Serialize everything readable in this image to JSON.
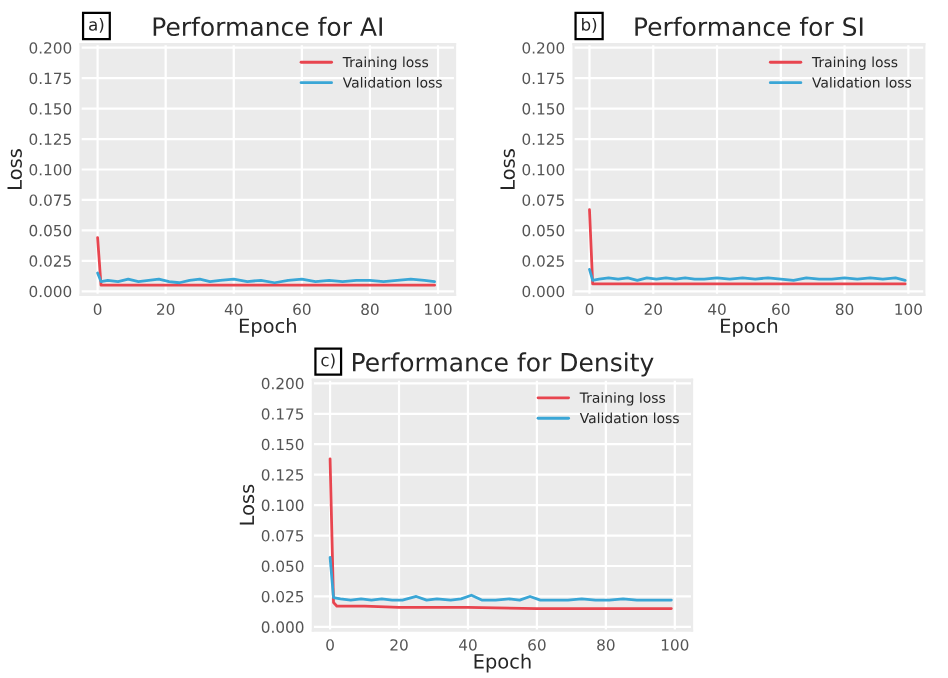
{
  "chart_data": [
    {
      "type": "line",
      "title": "Performance for AI",
      "xlabel": "Epoch",
      "ylabel": "Loss",
      "annotations": [
        "a)"
      ],
      "xlim": [
        -5,
        105
      ],
      "xticks": [
        0,
        20,
        40,
        60,
        80,
        100
      ],
      "ylim": [
        -0.003,
        0.203
      ],
      "yticks": [
        {
          "value": 0,
          "label": "0.000"
        },
        {
          "value": 0.025,
          "label": "0.025"
        },
        {
          "value": 0.05,
          "label": "0.050"
        },
        {
          "value": 0.075,
          "label": "0.075"
        },
        {
          "value": 0.1,
          "label": "0.100"
        },
        {
          "value": 0.125,
          "label": "0.125"
        },
        {
          "value": 0.15,
          "label": "0.150"
        },
        {
          "value": 0.175,
          "label": "0.175"
        },
        {
          "value": 0.2,
          "label": "0.200"
        }
      ],
      "grid": true,
      "legend": "top right",
      "line_style": "solid",
      "marker": "none",
      "series": [
        {
          "name": "Training loss",
          "color": "#e8454f",
          "x": [
            0,
            1,
            2,
            10,
            20,
            40,
            60,
            80,
            99
          ],
          "values": [
            0.044,
            0.005,
            0.005,
            0.005,
            0.005,
            0.005,
            0.005,
            0.005,
            0.005
          ]
        },
        {
          "name": "Validation loss",
          "color": "#3aa6d6",
          "x": [
            0,
            1,
            3,
            6,
            9,
            12,
            15,
            18,
            21,
            24,
            27,
            30,
            33,
            36,
            40,
            44,
            48,
            52,
            56,
            60,
            64,
            68,
            72,
            76,
            80,
            84,
            88,
            92,
            96,
            99
          ],
          "values": [
            0.015,
            0.008,
            0.009,
            0.008,
            0.01,
            0.008,
            0.009,
            0.01,
            0.008,
            0.007,
            0.009,
            0.01,
            0.008,
            0.009,
            0.01,
            0.008,
            0.009,
            0.007,
            0.009,
            0.01,
            0.008,
            0.009,
            0.008,
            0.009,
            0.009,
            0.008,
            0.009,
            0.01,
            0.009,
            0.008
          ]
        }
      ]
    },
    {
      "type": "line",
      "title": "Performance for SI",
      "xlabel": "Epoch",
      "ylabel": "Loss",
      "annotations": [
        "b)"
      ],
      "xlim": [
        -5,
        105
      ],
      "xticks": [
        0,
        20,
        40,
        60,
        80,
        100
      ],
      "ylim": [
        -0.003,
        0.203
      ],
      "yticks": [
        {
          "value": 0,
          "label": "0.000"
        },
        {
          "value": 0.025,
          "label": "0.025"
        },
        {
          "value": 0.05,
          "label": "0.050"
        },
        {
          "value": 0.075,
          "label": "0.075"
        },
        {
          "value": 0.1,
          "label": "0.100"
        },
        {
          "value": 0.125,
          "label": "0.125"
        },
        {
          "value": 0.15,
          "label": "0.150"
        },
        {
          "value": 0.175,
          "label": "0.175"
        },
        {
          "value": 0.2,
          "label": "0.200"
        }
      ],
      "grid": true,
      "legend": "top right",
      "line_style": "solid",
      "marker": "none",
      "series": [
        {
          "name": "Training loss",
          "color": "#e8454f",
          "x": [
            0,
            1,
            2,
            10,
            20,
            40,
            60,
            80,
            99
          ],
          "values": [
            0.067,
            0.006,
            0.006,
            0.006,
            0.006,
            0.006,
            0.006,
            0.006,
            0.006
          ]
        },
        {
          "name": "Validation loss",
          "color": "#3aa6d6",
          "x": [
            0,
            1,
            3,
            6,
            9,
            12,
            15,
            18,
            21,
            24,
            27,
            30,
            33,
            36,
            40,
            44,
            48,
            52,
            56,
            60,
            64,
            68,
            72,
            76,
            80,
            84,
            88,
            92,
            96,
            99
          ],
          "values": [
            0.018,
            0.009,
            0.01,
            0.011,
            0.01,
            0.011,
            0.009,
            0.011,
            0.01,
            0.011,
            0.01,
            0.011,
            0.01,
            0.01,
            0.011,
            0.01,
            0.011,
            0.01,
            0.011,
            0.01,
            0.009,
            0.011,
            0.01,
            0.01,
            0.011,
            0.01,
            0.011,
            0.01,
            0.011,
            0.009
          ]
        }
      ]
    },
    {
      "type": "line",
      "title": "Performance for Density",
      "xlabel": "Epoch",
      "ylabel": "Loss",
      "annotations": [
        "c)"
      ],
      "xlim": [
        -5,
        105
      ],
      "xticks": [
        0,
        20,
        40,
        60,
        80,
        100
      ],
      "ylim": [
        -0.003,
        0.203
      ],
      "yticks": [
        {
          "value": 0,
          "label": "0.000"
        },
        {
          "value": 0.025,
          "label": "0.025"
        },
        {
          "value": 0.05,
          "label": "0.050"
        },
        {
          "value": 0.075,
          "label": "0.075"
        },
        {
          "value": 0.1,
          "label": "0.100"
        },
        {
          "value": 0.125,
          "label": "0.125"
        },
        {
          "value": 0.15,
          "label": "0.150"
        },
        {
          "value": 0.175,
          "label": "0.175"
        },
        {
          "value": 0.2,
          "label": "0.200"
        }
      ],
      "grid": true,
      "legend": "top right",
      "line_style": "solid",
      "marker": "none",
      "series": [
        {
          "name": "Training loss",
          "color": "#e8454f",
          "x": [
            0,
            1,
            2,
            5,
            10,
            20,
            40,
            60,
            80,
            99
          ],
          "values": [
            0.138,
            0.02,
            0.017,
            0.017,
            0.017,
            0.016,
            0.016,
            0.015,
            0.015,
            0.015
          ]
        },
        {
          "name": "Validation loss",
          "color": "#3aa6d6",
          "x": [
            0,
            1,
            3,
            6,
            9,
            12,
            15,
            18,
            21,
            25,
            28,
            31,
            35,
            38,
            41,
            44,
            48,
            52,
            55,
            58,
            61,
            65,
            69,
            73,
            77,
            81,
            85,
            89,
            93,
            96,
            99
          ],
          "values": [
            0.057,
            0.024,
            0.023,
            0.022,
            0.023,
            0.022,
            0.023,
            0.022,
            0.022,
            0.025,
            0.022,
            0.023,
            0.022,
            0.023,
            0.026,
            0.022,
            0.022,
            0.023,
            0.022,
            0.025,
            0.022,
            0.022,
            0.022,
            0.023,
            0.022,
            0.022,
            0.023,
            0.022,
            0.022,
            0.022,
            0.022
          ]
        }
      ]
    }
  ]
}
